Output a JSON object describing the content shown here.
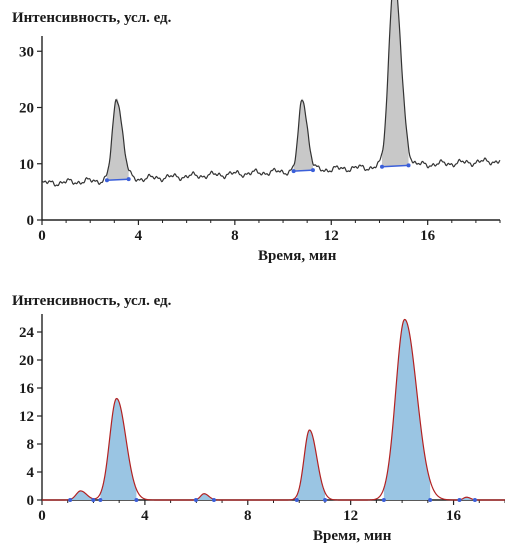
{
  "chart_data": [
    {
      "type": "line",
      "ylabel": "Интенсивность, усл. ед.",
      "xlabel": "Время, мин",
      "xlim": [
        0,
        19
      ],
      "ylim": [
        0,
        32
      ],
      "x_ticks": [
        0,
        4,
        8,
        12,
        16
      ],
      "y_ticks": [
        0,
        10,
        20,
        30
      ],
      "baseline": {
        "x": [
          0,
          19
        ],
        "y": [
          6.5,
          10.5
        ]
      },
      "peaks": [
        {
          "x": 3.1,
          "height": 14.5,
          "width": 0.45
        },
        {
          "x": 10.8,
          "height": 12.8,
          "width": 0.4
        },
        {
          "x": 14.6,
          "height": 33.5,
          "width": 0.55
        }
      ],
      "colors": {
        "line": "#333333",
        "fill": "#c8c8c8",
        "marker": "#3b5fd9"
      }
    },
    {
      "type": "area",
      "ylabel": "Интенсивность, усл. ед.",
      "xlabel": "Время, мин",
      "xlim": [
        0,
        18
      ],
      "ylim": [
        0,
        26
      ],
      "x_ticks": [
        0,
        4,
        8,
        12,
        16
      ],
      "y_ticks": [
        0,
        4,
        8,
        12,
        16,
        20,
        24
      ],
      "peaks": [
        {
          "x": 1.5,
          "height": 1.3,
          "width": 0.45
        },
        {
          "x": 2.9,
          "height": 14.5,
          "width": 0.7
        },
        {
          "x": 6.3,
          "height": 0.9,
          "width": 0.35
        },
        {
          "x": 10.4,
          "height": 10.0,
          "width": 0.55
        },
        {
          "x": 14.1,
          "height": 25.8,
          "width": 0.9
        },
        {
          "x": 16.5,
          "height": 0.4,
          "width": 0.3
        }
      ],
      "colors": {
        "line": "#b22222",
        "fill": "#9ac5e3",
        "marker": "#3b5fd9"
      }
    }
  ]
}
